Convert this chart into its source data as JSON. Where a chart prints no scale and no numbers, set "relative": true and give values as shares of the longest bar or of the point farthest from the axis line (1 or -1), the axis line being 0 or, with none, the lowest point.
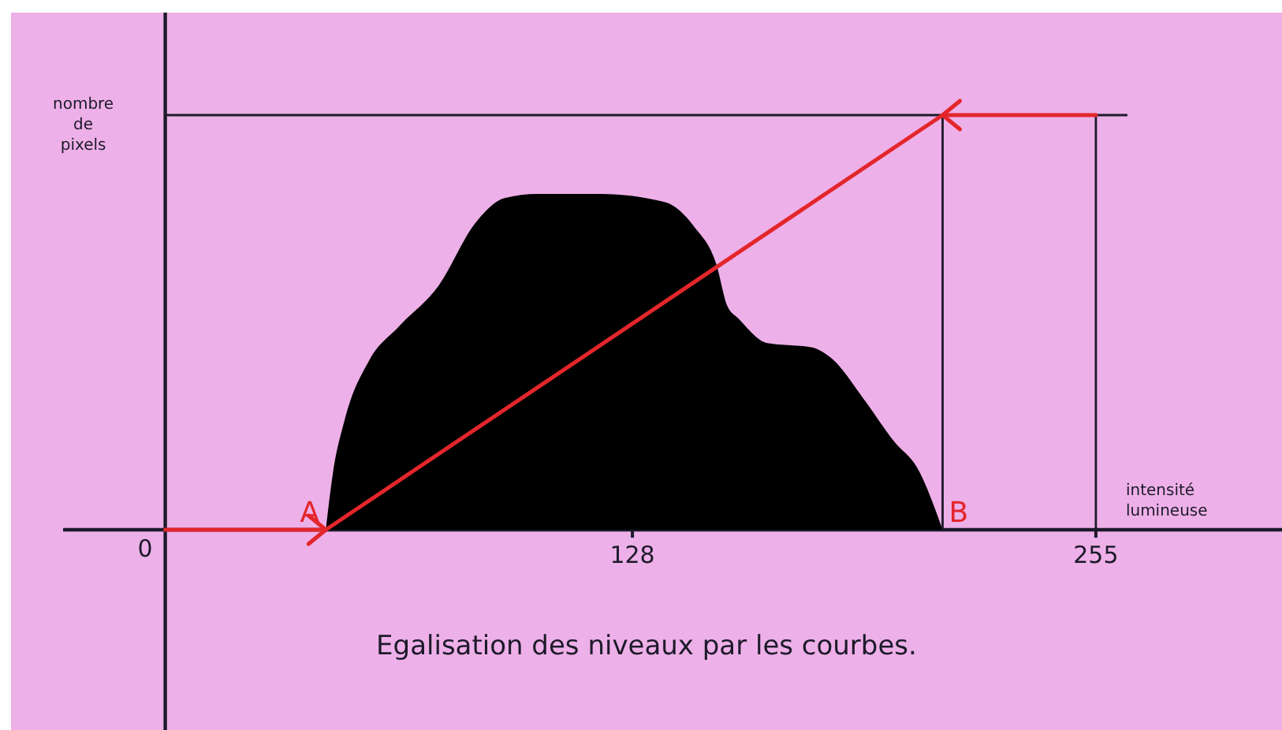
{
  "chart_data": {
    "type": "area",
    "title": "Egalisation des niveaux par les courbes.",
    "xlabel": "intensité lumineuse",
    "ylabel": "nombre de pixels",
    "relative": true,
    "xlim": [
      -28,
      306
    ],
    "xticks": [
      0,
      128,
      255
    ],
    "series": [
      {
        "color": "#000000",
        "x": [
          44,
          46,
          49,
          56,
          64,
          75,
          85,
          93,
          102,
          119,
          137,
          145,
          151,
          154,
          157,
          165,
          177,
          183,
          191,
          200,
          206,
          213
        ],
        "values": [
          0,
          0.14,
          0.26,
          0.41,
          0.49,
          0.59,
          0.74,
          0.8,
          0.81,
          0.81,
          0.79,
          0.73,
          0.64,
          0.54,
          0.51,
          0.45,
          0.44,
          0.41,
          0.32,
          0.21,
          0.15,
          0
        ]
      },
      {
        "type": "line",
        "color": "#e3262b",
        "x": [
          0,
          44,
          213,
          255
        ],
        "values": [
          0,
          0,
          1,
          1
        ]
      }
    ],
    "ref_lines": [
      {
        "axis": "y",
        "value": 1,
        "color": "#1c1a2a"
      },
      {
        "axis": "x",
        "value": 213,
        "color": "#1c1a2a"
      },
      {
        "axis": "x",
        "value": 255,
        "color": "#1c1a2a"
      }
    ],
    "annotations": [
      {
        "text": "A",
        "x": 44,
        "y": 0
      },
      {
        "text": "B",
        "x": 213,
        "y": 0
      }
    ]
  }
}
